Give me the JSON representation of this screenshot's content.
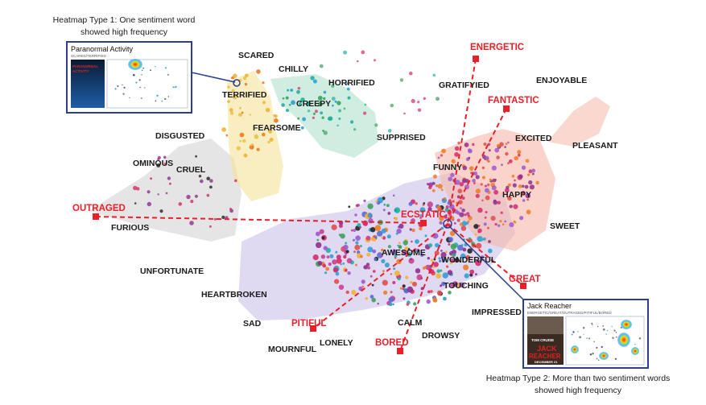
{
  "captions": {
    "type1_line1": "Heatmap Type 1: One sentiment word",
    "type1_line2": "showed high frequency",
    "type2_line1": "Heatmap Type 2: More than two sentiment words",
    "type2_line2": "showed high frequency"
  },
  "inset1": {
    "title": "Paranormal Activity",
    "subtitle": "SCARED/TERRIFIED",
    "poster_line1": "PARANORMAL",
    "poster_line2": "ACTIVITY"
  },
  "inset2": {
    "title": "Jack Reacher",
    "subtitle": "ENERGETIC/GREAT/OUTRAGED/PITIFUL/BORED",
    "poster_actor": "TOM CRUISE",
    "poster_line1": "JACK",
    "poster_line2": "REACHER",
    "poster_date": "DECEMBER 21"
  },
  "words": {
    "scared": "SCARED",
    "chilly": "CHILLY",
    "horrified": "HORRIFIED",
    "terrified": "TERRIFIED",
    "creepy": "CREEPY",
    "fearsome": "FEARSOME",
    "disgusted": "DISGUSTED",
    "suprised": "SUPPRISED",
    "ominous": "OMINOUS",
    "cruel": "CRUEL",
    "furious": "FURIOUS",
    "unfortunate": "UNFORTUNATE",
    "heartbroken": "HEARTBROKEN",
    "sad": "SAD",
    "mournful": "MOURNFUL",
    "lonely": "LONELY",
    "calm": "CALM",
    "drowsy": "DROWSY",
    "impressed": "IMPRESSED",
    "touching": "TOUCHING",
    "wonderful": "WONDERFUL",
    "awesome": "AWESOME",
    "funny": "FUNNY",
    "happy": "HAPPY",
    "sweet": "SWEET",
    "excited": "EXCITED",
    "pleasant": "PLEASANT",
    "enjoyable": "ENJOYABLE",
    "gratifyied": "GRATIFYIED"
  },
  "highlighted": {
    "energetic": "ENERGETIC",
    "fantastic": "FANTASTIC",
    "outraged": "OUTRAGED",
    "ecstatic": "ECSTATIC",
    "great": "GREAT",
    "pitiful": "PITIFUL",
    "bored": "BORED"
  },
  "colors": {
    "accent": "#e8202a",
    "frame": "#2d3e8f",
    "dots": [
      "#8e2f8f",
      "#d42a6b",
      "#2f9fd6",
      "#f2b233",
      "#3aa35b",
      "#ef7a22",
      "#5b6ad4",
      "#222222",
      "#e34b4b",
      "#9b59d0",
      "#1fb0a3",
      "#c93f8f"
    ]
  }
}
